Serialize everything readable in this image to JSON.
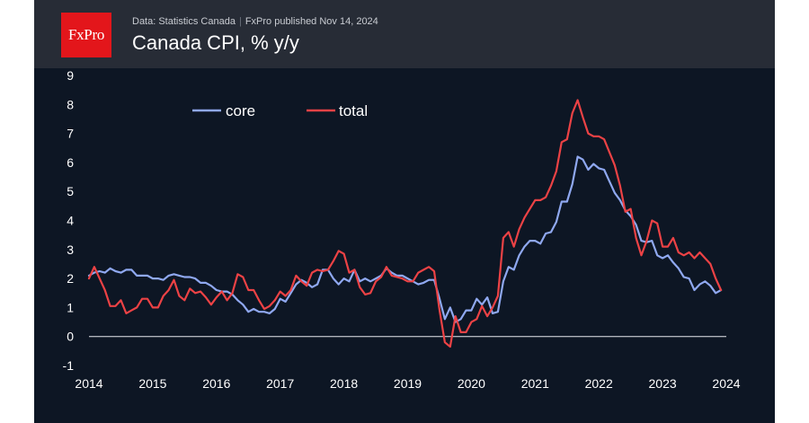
{
  "header": {
    "logo_text": "FxPro",
    "source": "Data: Statistics Canada",
    "separator": "|",
    "published": "FxPro published Nov 14, 2024",
    "title": "Canada CPI, % y/y"
  },
  "colors": {
    "background": "#0d1624",
    "header": "#272c36",
    "logo": "#e3161b",
    "core": "#8fa8f0",
    "total": "#ec4245",
    "axis_text": "#ffffff"
  },
  "chart_data": {
    "type": "line",
    "title": "Canada CPI, % y/y",
    "xlabel": "",
    "ylabel": "",
    "xlim": [
      2014,
      2024
    ],
    "ylim": [
      -1,
      9
    ],
    "x_ticks": [
      "2014",
      "2015",
      "2016",
      "2017",
      "2018",
      "2019",
      "2020",
      "2021",
      "2022",
      "2023",
      "2024"
    ],
    "y_ticks": [
      "-1",
      "0",
      "1",
      "2",
      "3",
      "4",
      "5",
      "6",
      "7",
      "8",
      "9"
    ],
    "grid": false,
    "legend": "top-left",
    "x_start": 2014.0,
    "x_step_months": 1,
    "series": [
      {
        "name": "core",
        "values": [
          2.1,
          2.2,
          2.25,
          2.2,
          2.35,
          2.25,
          2.2,
          2.3,
          2.3,
          2.1,
          2.1,
          2.1,
          2.0,
          2.0,
          1.95,
          2.1,
          2.15,
          2.1,
          2.05,
          2.05,
          2.0,
          1.85,
          1.85,
          1.75,
          1.6,
          1.55,
          1.55,
          1.45,
          1.25,
          1.1,
          0.85,
          0.95,
          0.85,
          0.85,
          0.8,
          0.95,
          1.3,
          1.2,
          1.5,
          1.8,
          1.95,
          1.85,
          1.7,
          1.8,
          2.3,
          2.3,
          2.0,
          1.8,
          2.0,
          1.9,
          2.3,
          1.9,
          2.0,
          1.9,
          2.0,
          2.1,
          2.35,
          2.2,
          2.1,
          2.1,
          2.0,
          1.9,
          1.8,
          1.85,
          1.95,
          1.95,
          1.3,
          0.6,
          1.0,
          0.5,
          0.6,
          0.9,
          0.9,
          1.3,
          1.1,
          1.35,
          0.8,
          0.85,
          1.9,
          2.4,
          2.3,
          2.8,
          3.1,
          3.3,
          3.3,
          3.2,
          3.55,
          3.6,
          3.95,
          4.65,
          4.65,
          5.25,
          6.2,
          6.1,
          5.75,
          5.95,
          5.8,
          5.75,
          5.35,
          4.95,
          4.7,
          4.35,
          4.15,
          3.85,
          3.3,
          3.25,
          3.3,
          2.8,
          2.7,
          2.8,
          2.55,
          2.35,
          2.05,
          2.0,
          1.6,
          1.8,
          1.9,
          1.75,
          1.5,
          1.6
        ]
      },
      {
        "name": "total",
        "values": [
          2.0,
          2.4,
          2.0,
          1.6,
          1.05,
          1.05,
          1.25,
          0.8,
          0.9,
          1.0,
          1.3,
          1.3,
          1.0,
          1.0,
          1.4,
          1.6,
          1.95,
          1.4,
          1.25,
          1.65,
          1.5,
          1.55,
          1.35,
          1.1,
          1.35,
          1.55,
          1.25,
          1.5,
          2.15,
          2.05,
          1.6,
          1.6,
          1.25,
          0.95,
          1.05,
          1.25,
          1.55,
          1.4,
          1.6,
          2.1,
          1.9,
          1.75,
          2.2,
          2.3,
          2.25,
          2.3,
          2.6,
          2.95,
          2.85,
          2.2,
          2.3,
          1.7,
          1.45,
          1.5,
          1.9,
          2.05,
          2.4,
          2.1,
          2.05,
          2.0,
          1.9,
          1.9,
          2.2,
          2.3,
          2.4,
          2.25,
          0.9,
          -0.2,
          -0.35,
          0.7,
          0.15,
          0.15,
          0.5,
          0.6,
          1.05,
          0.7,
          1.0,
          1.4,
          3.4,
          3.6,
          3.1,
          3.7,
          4.1,
          4.4,
          4.7,
          4.7,
          4.8,
          5.2,
          5.7,
          6.7,
          6.8,
          7.7,
          8.15,
          7.55,
          7.0,
          6.9,
          6.9,
          6.8,
          6.35,
          5.9,
          5.2,
          4.3,
          4.4,
          3.4,
          2.8,
          3.3,
          4.0,
          3.9,
          3.1,
          3.1,
          3.4,
          2.9,
          2.8,
          2.9,
          2.7,
          2.9,
          2.7,
          2.5,
          2.0,
          1.6
        ]
      }
    ]
  }
}
